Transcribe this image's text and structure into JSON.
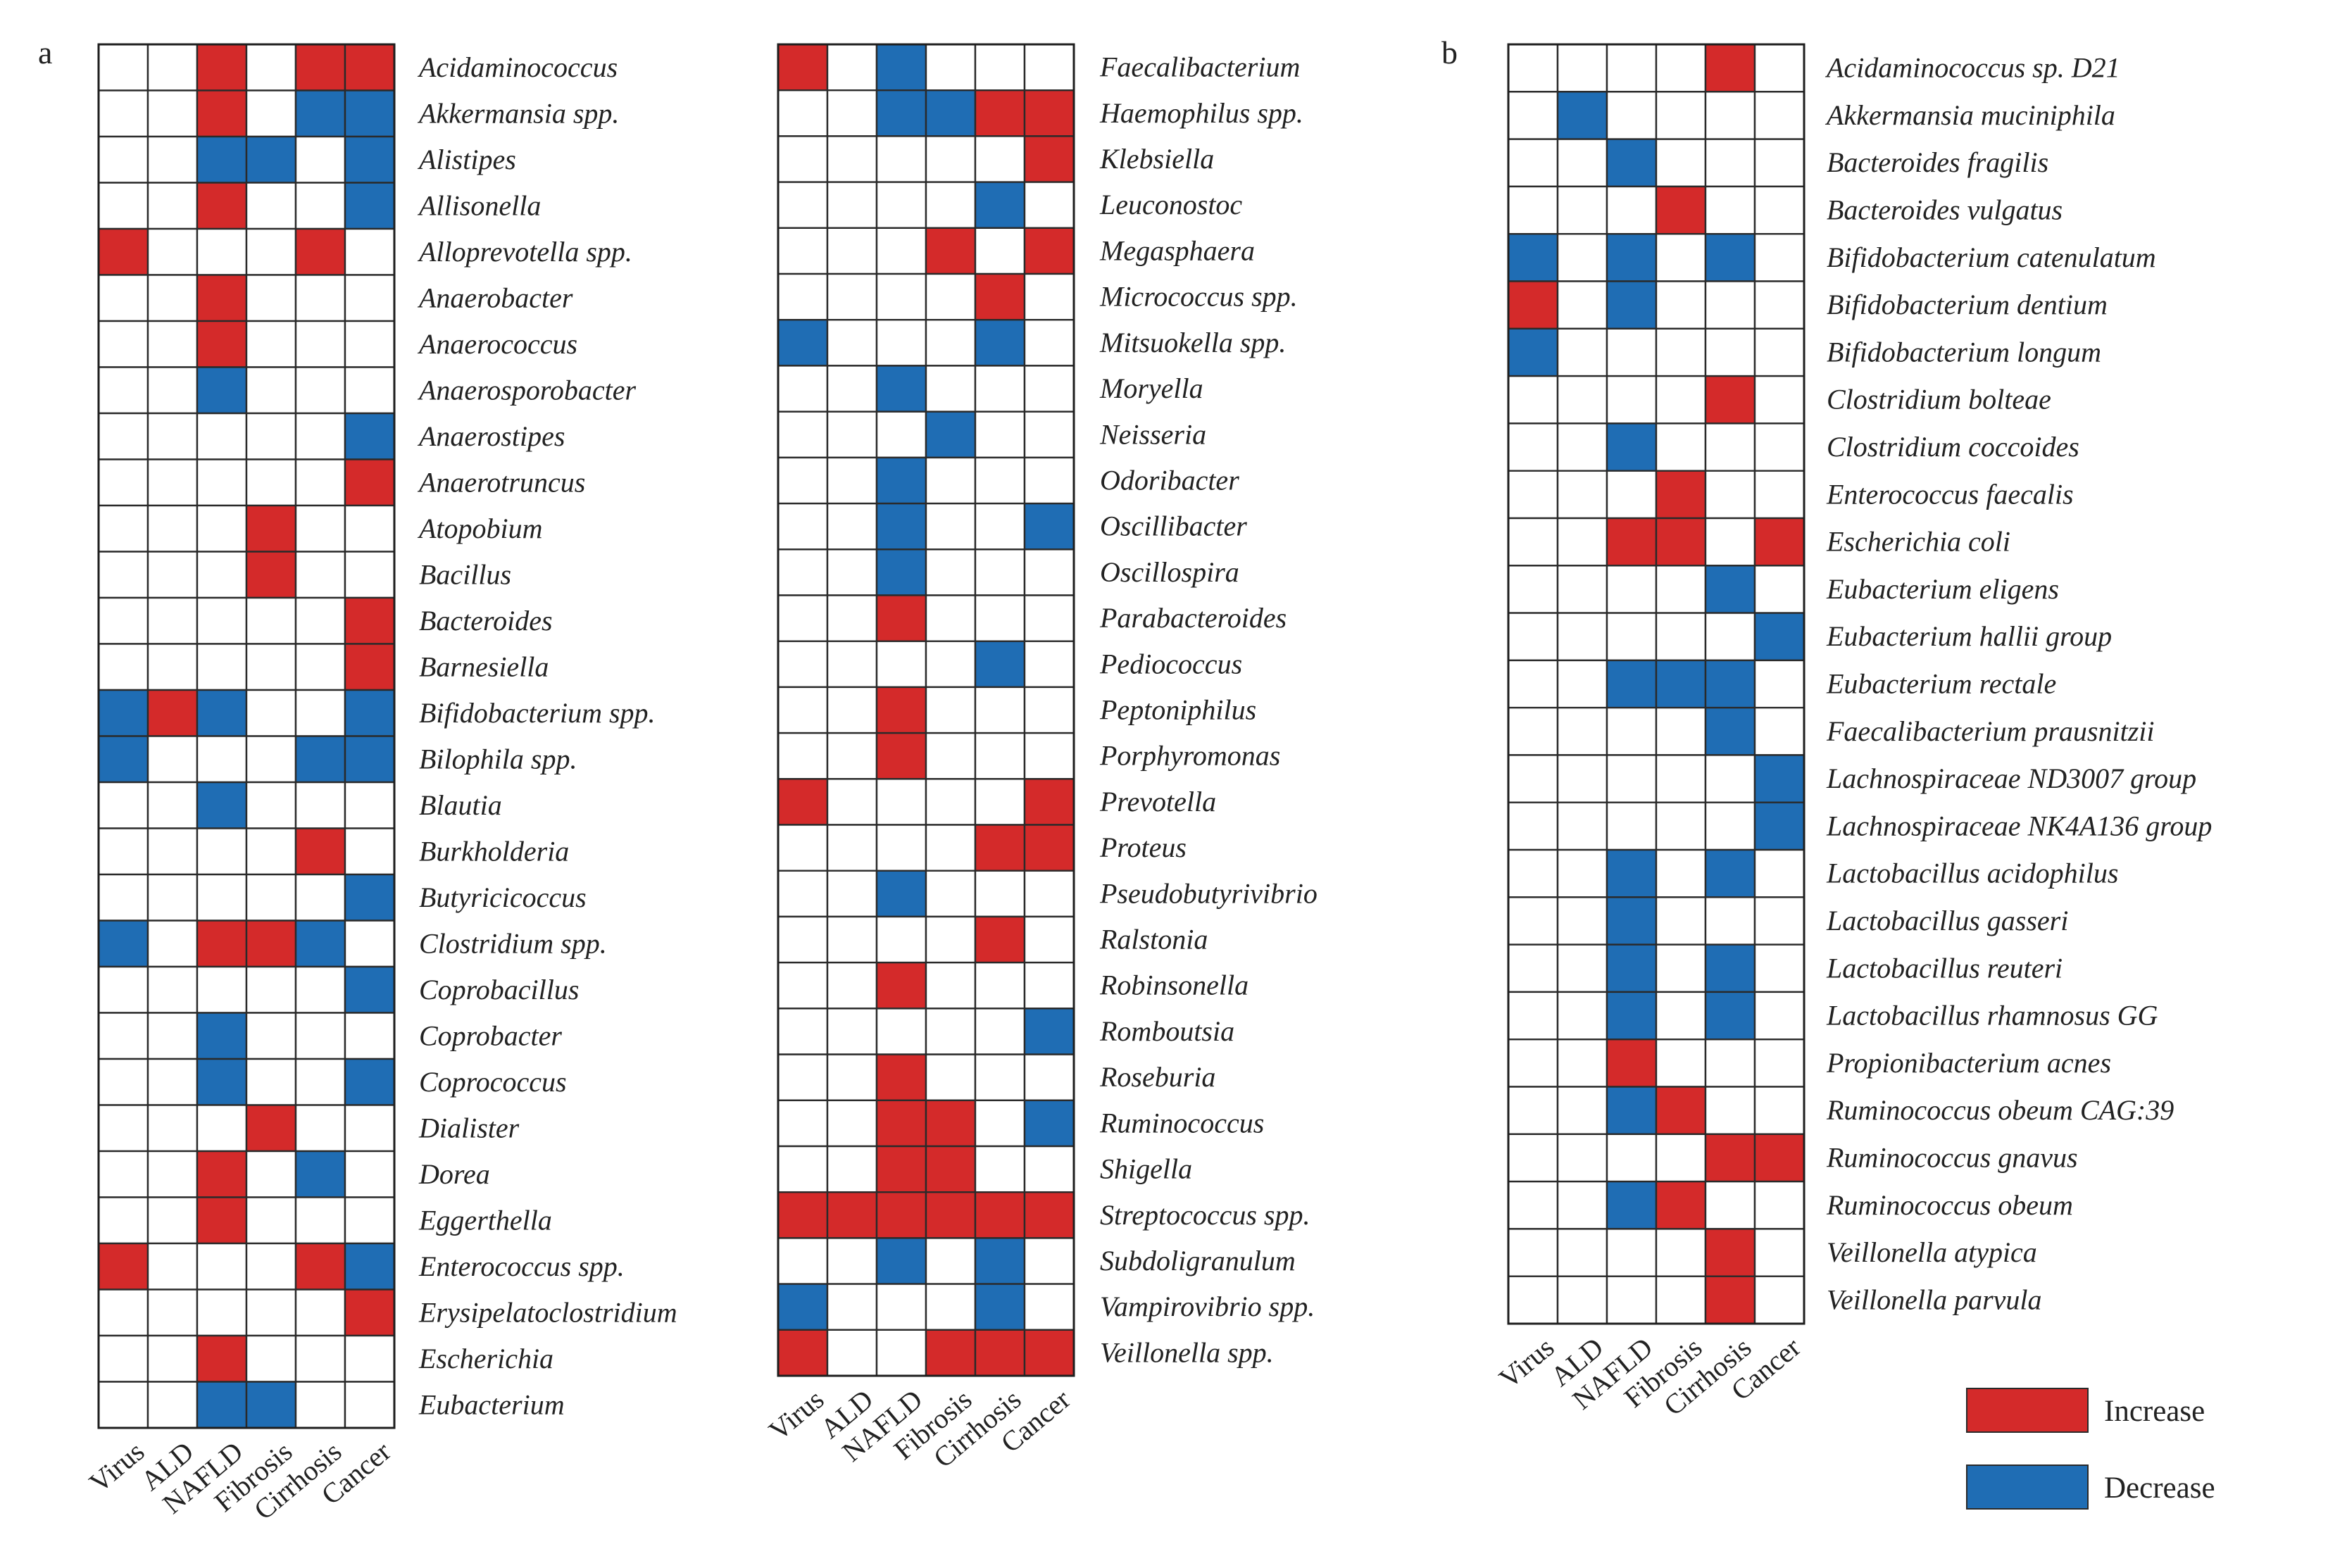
{
  "chart_data": [
    {
      "type": "heatmap",
      "panel": "a",
      "columns": [
        "Virus",
        "ALD",
        "NAFLD",
        "Fibrosis",
        "Cirrhosis",
        "Cancer"
      ],
      "rows": [
        {
          "label": "Acidaminococcus",
          "values": [
            0,
            0,
            1,
            0,
            1,
            1
          ]
        },
        {
          "label": "Akkermansia spp.",
          "values": [
            0,
            0,
            1,
            0,
            -1,
            -1
          ]
        },
        {
          "label": "Alistipes",
          "values": [
            0,
            0,
            -1,
            -1,
            0,
            -1
          ]
        },
        {
          "label": "Allisonella",
          "values": [
            0,
            0,
            1,
            0,
            0,
            -1
          ]
        },
        {
          "label": "Alloprevotella spp.",
          "values": [
            1,
            0,
            0,
            0,
            1,
            0
          ]
        },
        {
          "label": "Anaerobacter",
          "values": [
            0,
            0,
            1,
            0,
            0,
            0
          ]
        },
        {
          "label": "Anaerococcus",
          "values": [
            0,
            0,
            1,
            0,
            0,
            0
          ]
        },
        {
          "label": "Anaerosporobacter",
          "values": [
            0,
            0,
            -1,
            0,
            0,
            0
          ]
        },
        {
          "label": "Anaerostipes",
          "values": [
            0,
            0,
            0,
            0,
            0,
            -1
          ]
        },
        {
          "label": "Anaerotruncus",
          "values": [
            0,
            0,
            0,
            0,
            0,
            1
          ]
        },
        {
          "label": "Atopobium",
          "values": [
            0,
            0,
            0,
            1,
            0,
            0
          ]
        },
        {
          "label": "Bacillus",
          "values": [
            0,
            0,
            0,
            1,
            0,
            0
          ]
        },
        {
          "label": "Bacteroides",
          "values": [
            0,
            0,
            0,
            0,
            0,
            1
          ]
        },
        {
          "label": "Barnesiella",
          "values": [
            0,
            0,
            0,
            0,
            0,
            1
          ]
        },
        {
          "label": "Bifidobacterium spp.",
          "values": [
            -1,
            1,
            -1,
            0,
            0,
            -1
          ]
        },
        {
          "label": "Bilophila spp.",
          "values": [
            -1,
            0,
            0,
            0,
            -1,
            -1
          ]
        },
        {
          "label": "Blautia",
          "values": [
            0,
            0,
            -1,
            0,
            0,
            0
          ]
        },
        {
          "label": "Burkholderia",
          "values": [
            0,
            0,
            0,
            0,
            1,
            0
          ]
        },
        {
          "label": "Butyricicoccus",
          "values": [
            0,
            0,
            0,
            0,
            0,
            -1
          ]
        },
        {
          "label": "Clostridium spp.",
          "values": [
            -1,
            0,
            1,
            1,
            -1,
            0
          ]
        },
        {
          "label": "Coprobacillus",
          "values": [
            0,
            0,
            0,
            0,
            0,
            -1
          ]
        },
        {
          "label": "Coprobacter",
          "values": [
            0,
            0,
            -1,
            0,
            0,
            0
          ]
        },
        {
          "label": "Coprococcus",
          "values": [
            0,
            0,
            -1,
            0,
            0,
            -1
          ]
        },
        {
          "label": "Dialister",
          "values": [
            0,
            0,
            0,
            1,
            0,
            0
          ]
        },
        {
          "label": "Dorea",
          "values": [
            0,
            0,
            1,
            0,
            -1,
            0
          ]
        },
        {
          "label": "Eggerthella",
          "values": [
            0,
            0,
            1,
            0,
            0,
            0
          ]
        },
        {
          "label": "Enterococcus spp.",
          "values": [
            1,
            0,
            0,
            0,
            1,
            -1
          ]
        },
        {
          "label": "Erysipelatoclostridium",
          "values": [
            0,
            0,
            0,
            0,
            0,
            1
          ]
        },
        {
          "label": "Escherichia",
          "values": [
            0,
            0,
            1,
            0,
            0,
            0
          ]
        },
        {
          "label": "Eubacterium",
          "values": [
            0,
            0,
            -1,
            -1,
            0,
            0
          ]
        }
      ]
    },
    {
      "type": "heatmap",
      "panel": "a (continued)",
      "columns": [
        "Virus",
        "ALD",
        "NAFLD",
        "Fibrosis",
        "Cirrhosis",
        "Cancer"
      ],
      "rows": [
        {
          "label": "Faecalibacterium",
          "values": [
            1,
            0,
            -1,
            0,
            0,
            0
          ]
        },
        {
          "label": "Haemophilus spp.",
          "values": [
            0,
            0,
            -1,
            -1,
            1,
            1
          ]
        },
        {
          "label": "Klebsiella",
          "values": [
            0,
            0,
            0,
            0,
            0,
            1
          ]
        },
        {
          "label": "Leuconostoc",
          "values": [
            0,
            0,
            0,
            0,
            -1,
            0
          ]
        },
        {
          "label": "Megasphaera",
          "values": [
            0,
            0,
            0,
            1,
            0,
            1
          ]
        },
        {
          "label": "Micrococcus spp.",
          "values": [
            0,
            0,
            0,
            0,
            1,
            0
          ]
        },
        {
          "label": "Mitsuokella spp.",
          "values": [
            -1,
            0,
            0,
            0,
            -1,
            0
          ]
        },
        {
          "label": "Moryella",
          "values": [
            0,
            0,
            -1,
            0,
            0,
            0
          ]
        },
        {
          "label": "Neisseria",
          "values": [
            0,
            0,
            0,
            -1,
            0,
            0
          ]
        },
        {
          "label": "Odoribacter",
          "values": [
            0,
            0,
            -1,
            0,
            0,
            0
          ]
        },
        {
          "label": "Oscillibacter",
          "values": [
            0,
            0,
            -1,
            0,
            0,
            -1
          ]
        },
        {
          "label": "Oscillospira",
          "values": [
            0,
            0,
            -1,
            0,
            0,
            0
          ]
        },
        {
          "label": "Parabacteroides",
          "values": [
            0,
            0,
            1,
            0,
            0,
            0
          ]
        },
        {
          "label": "Pediococcus",
          "values": [
            0,
            0,
            0,
            0,
            -1,
            0
          ]
        },
        {
          "label": "Peptoniphilus",
          "values": [
            0,
            0,
            1,
            0,
            0,
            0
          ]
        },
        {
          "label": "Porphyromonas",
          "values": [
            0,
            0,
            1,
            0,
            0,
            0
          ]
        },
        {
          "label": "Prevotella",
          "values": [
            1,
            0,
            0,
            0,
            0,
            1
          ]
        },
        {
          "label": "Proteus",
          "values": [
            0,
            0,
            0,
            0,
            1,
            1
          ]
        },
        {
          "label": "Pseudobutyrivibrio",
          "values": [
            0,
            0,
            -1,
            0,
            0,
            0
          ]
        },
        {
          "label": "Ralstonia",
          "values": [
            0,
            0,
            0,
            0,
            1,
            0
          ]
        },
        {
          "label": "Robinsonella",
          "values": [
            0,
            0,
            1,
            0,
            0,
            0
          ]
        },
        {
          "label": "Romboutsia",
          "values": [
            0,
            0,
            0,
            0,
            0,
            -1
          ]
        },
        {
          "label": "Roseburia",
          "values": [
            0,
            0,
            1,
            0,
            0,
            0
          ]
        },
        {
          "label": "Ruminococcus",
          "values": [
            0,
            0,
            1,
            1,
            0,
            -1
          ]
        },
        {
          "label": "Shigella",
          "values": [
            0,
            0,
            1,
            1,
            0,
            0
          ]
        },
        {
          "label": "Streptococcus spp.",
          "values": [
            1,
            1,
            1,
            1,
            1,
            1
          ]
        },
        {
          "label": "Subdoligranulum",
          "values": [
            0,
            0,
            -1,
            0,
            -1,
            0
          ]
        },
        {
          "label": "Vampirovibrio spp.",
          "values": [
            -1,
            0,
            0,
            0,
            -1,
            0
          ]
        },
        {
          "label": "Veillonella spp.",
          "values": [
            1,
            0,
            0,
            1,
            1,
            1
          ]
        }
      ]
    },
    {
      "type": "heatmap",
      "panel": "b",
      "columns": [
        "Virus",
        "ALD",
        "NAFLD",
        "Fibrosis",
        "Cirrhosis",
        "Cancer"
      ],
      "rows": [
        {
          "label": "Acidaminococcus sp. D21",
          "values": [
            0,
            0,
            0,
            0,
            1,
            0
          ]
        },
        {
          "label": "Akkermansia muciniphila",
          "values": [
            0,
            -1,
            0,
            0,
            0,
            0
          ]
        },
        {
          "label": "Bacteroides fragilis",
          "values": [
            0,
            0,
            -1,
            0,
            0,
            0
          ]
        },
        {
          "label": "Bacteroides vulgatus",
          "values": [
            0,
            0,
            0,
            1,
            0,
            0
          ]
        },
        {
          "label": "Bifidobacterium catenulatum",
          "values": [
            -1,
            0,
            -1,
            0,
            -1,
            0
          ]
        },
        {
          "label": "Bifidobacterium dentium",
          "values": [
            1,
            0,
            -1,
            0,
            0,
            0
          ]
        },
        {
          "label": "Bifidobacterium longum",
          "values": [
            -1,
            0,
            0,
            0,
            0,
            0
          ]
        },
        {
          "label": "Clostridium bolteae",
          "values": [
            0,
            0,
            0,
            0,
            1,
            0
          ]
        },
        {
          "label": "Clostridium coccoides",
          "values": [
            0,
            0,
            -1,
            0,
            0,
            0
          ]
        },
        {
          "label": "Enterococcus faecalis",
          "values": [
            0,
            0,
            0,
            1,
            0,
            0
          ]
        },
        {
          "label": "Escherichia coli",
          "values": [
            0,
            0,
            1,
            1,
            0,
            1
          ]
        },
        {
          "label": "Eubacterium eligens",
          "values": [
            0,
            0,
            0,
            0,
            -1,
            0
          ]
        },
        {
          "label": "Eubacterium hallii group",
          "values": [
            0,
            0,
            0,
            0,
            0,
            -1
          ]
        },
        {
          "label": "Eubacterium rectale",
          "values": [
            0,
            0,
            -1,
            -1,
            -1,
            0
          ]
        },
        {
          "label": "Faecalibacterium prausnitzii",
          "values": [
            0,
            0,
            0,
            0,
            -1,
            0
          ]
        },
        {
          "label": "Lachnospiraceae ND3007 group",
          "values": [
            0,
            0,
            0,
            0,
            0,
            -1
          ]
        },
        {
          "label": "Lachnospiraceae NK4A136 group",
          "values": [
            0,
            0,
            0,
            0,
            0,
            -1
          ]
        },
        {
          "label": "Lactobacillus acidophilus",
          "values": [
            0,
            0,
            -1,
            0,
            -1,
            0
          ]
        },
        {
          "label": "Lactobacillus gasseri",
          "values": [
            0,
            0,
            -1,
            0,
            0,
            0
          ]
        },
        {
          "label": "Lactobacillus reuteri",
          "values": [
            0,
            0,
            -1,
            0,
            -1,
            0
          ]
        },
        {
          "label": "Lactobacillus rhamnosus GG",
          "values": [
            0,
            0,
            -1,
            0,
            -1,
            0
          ]
        },
        {
          "label": "Propionibacterium acnes",
          "values": [
            0,
            0,
            1,
            0,
            0,
            0
          ]
        },
        {
          "label": "Ruminococcus  obeum CAG:39",
          "values": [
            0,
            0,
            -1,
            1,
            0,
            0
          ]
        },
        {
          "label": "Ruminococcus gnavus",
          "values": [
            0,
            0,
            0,
            0,
            1,
            1
          ]
        },
        {
          "label": "Ruminococcus obeum",
          "values": [
            0,
            0,
            -1,
            1,
            0,
            0
          ]
        },
        {
          "label": "Veillonella atypica",
          "values": [
            0,
            0,
            0,
            0,
            1,
            0
          ]
        },
        {
          "label": "Veillonella parvula",
          "values": [
            0,
            0,
            0,
            0,
            1,
            0
          ]
        }
      ]
    }
  ],
  "panel_labels": {
    "a": "a",
    "b": "b"
  },
  "legend": [
    {
      "key": "increase",
      "label": "Increase",
      "value": 1,
      "color": "#d42a2a"
    },
    {
      "key": "decrease",
      "label": "Decrease",
      "value": -1,
      "color": "#1f6db4"
    }
  ],
  "colors": {
    "increase": "#d42a2a",
    "decrease": "#1f6db4",
    "none": "#ffffff"
  }
}
